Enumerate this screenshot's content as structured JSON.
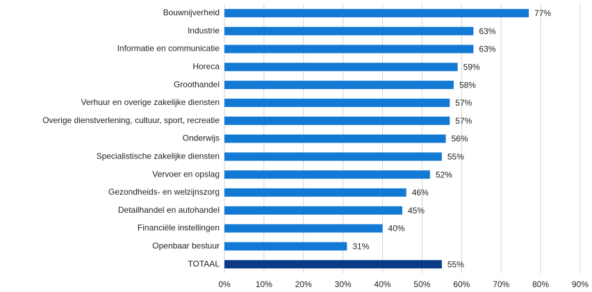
{
  "chart_data": {
    "type": "barh",
    "categories": [
      "Bouwnijverheid",
      "Industrie",
      "Informatie en communicatie",
      "Horeca",
      "Groothandel",
      "Verhuur en overige zakelijke diensten",
      "Overige dienstverlening, cultuur, sport, recreatie",
      "Onderwijs",
      "Specialistische zakelijke diensten",
      "Vervoer en opslag",
      "Gezondheids- en welzijnszorg",
      "Detailhandel en autohandel",
      "Financiële instellingen",
      "Openbaar bestuur",
      "TOTAAL"
    ],
    "values": [
      77,
      63,
      63,
      59,
      58,
      57,
      57,
      56,
      55,
      52,
      46,
      45,
      40,
      31,
      55
    ],
    "value_labels": [
      "77%",
      "63%",
      "63%",
      "59%",
      "58%",
      "57%",
      "57%",
      "56%",
      "55%",
      "52%",
      "46%",
      "45%",
      "40%",
      "31%",
      "55%"
    ],
    "colors": [
      "#1279d4",
      "#1279d4",
      "#1279d4",
      "#1279d4",
      "#1279d4",
      "#1279d4",
      "#1279d4",
      "#1279d4",
      "#1279d4",
      "#1279d4",
      "#1279d4",
      "#1279d4",
      "#1279d4",
      "#1279d4",
      "#0b3a86"
    ],
    "xlim": [
      0,
      90
    ],
    "xticks": [
      {
        "value": 0,
        "label": "0%"
      },
      {
        "value": 10,
        "label": "10%"
      },
      {
        "value": 20,
        "label": "20%"
      },
      {
        "value": 30,
        "label": "30%"
      },
      {
        "value": 40,
        "label": "40%"
      },
      {
        "value": 50,
        "label": "50%"
      },
      {
        "value": 60,
        "label": "60%"
      },
      {
        "value": 70,
        "label": "70%"
      },
      {
        "value": 80,
        "label": "80%"
      },
      {
        "value": 90,
        "label": "90%"
      }
    ],
    "grid": true
  }
}
